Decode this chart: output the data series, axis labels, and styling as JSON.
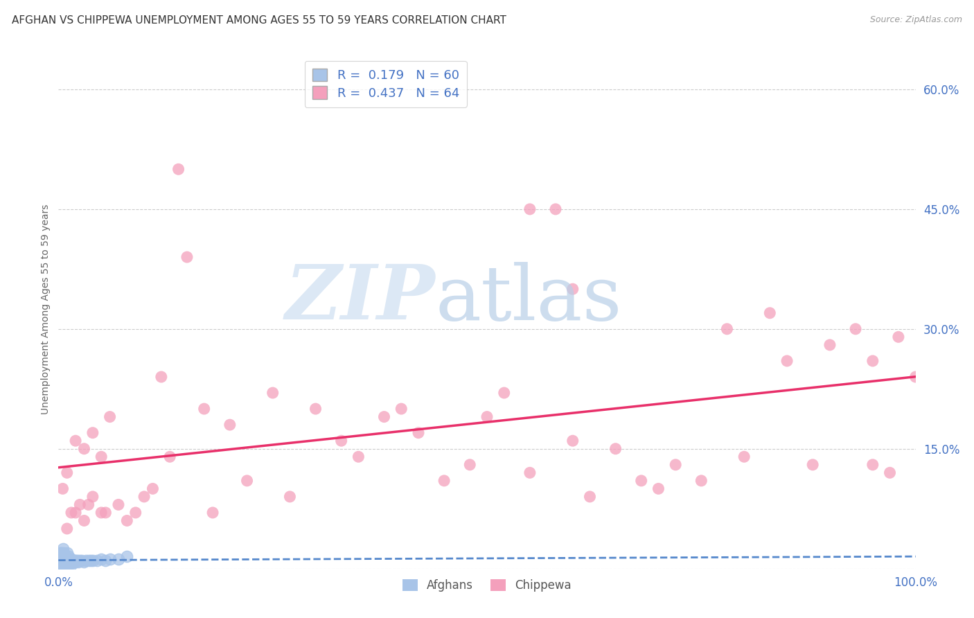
{
  "title": "AFGHAN VS CHIPPEWA UNEMPLOYMENT AMONG AGES 55 TO 59 YEARS CORRELATION CHART",
  "source": "Source: ZipAtlas.com",
  "ylabel": "Unemployment Among Ages 55 to 59 years",
  "xlim": [
    0,
    1.0
  ],
  "ylim": [
    0,
    0.65
  ],
  "yticks_right": [
    0.0,
    0.15,
    0.3,
    0.45,
    0.6
  ],
  "ytick_labels_right": [
    "",
    "15.0%",
    "30.0%",
    "45.0%",
    "60.0%"
  ],
  "afghans_R": 0.179,
  "afghans_N": 60,
  "chippewa_R": 0.437,
  "chippewa_N": 64,
  "afghans_color": "#a8c4e8",
  "chippewa_color": "#f4a0bc",
  "afghans_line_color": "#5588cc",
  "chippewa_line_color": "#e8306a",
  "legend_label_afghans": "Afghans",
  "legend_label_chippewa": "Chippewa",
  "background_color": "#ffffff",
  "afghans_x": [
    0.001,
    0.001,
    0.001,
    0.002,
    0.002,
    0.002,
    0.003,
    0.003,
    0.003,
    0.004,
    0.004,
    0.004,
    0.004,
    0.005,
    0.005,
    0.005,
    0.005,
    0.006,
    0.006,
    0.006,
    0.007,
    0.007,
    0.007,
    0.008,
    0.008,
    0.009,
    0.009,
    0.01,
    0.01,
    0.01,
    0.011,
    0.011,
    0.012,
    0.012,
    0.013,
    0.013,
    0.014,
    0.015,
    0.015,
    0.016,
    0.017,
    0.018,
    0.019,
    0.02,
    0.021,
    0.022,
    0.023,
    0.025,
    0.027,
    0.03,
    0.032,
    0.035,
    0.038,
    0.04,
    0.045,
    0.05,
    0.055,
    0.06,
    0.07,
    0.08
  ],
  "afghans_y": [
    0.005,
    0.01,
    0.015,
    0.005,
    0.01,
    0.02,
    0.005,
    0.01,
    0.02,
    0.005,
    0.008,
    0.012,
    0.02,
    0.005,
    0.01,
    0.015,
    0.025,
    0.005,
    0.01,
    0.02,
    0.005,
    0.01,
    0.015,
    0.008,
    0.015,
    0.005,
    0.012,
    0.005,
    0.01,
    0.02,
    0.005,
    0.01,
    0.008,
    0.015,
    0.005,
    0.012,
    0.008,
    0.005,
    0.012,
    0.008,
    0.01,
    0.008,
    0.01,
    0.008,
    0.01,
    0.01,
    0.008,
    0.01,
    0.01,
    0.008,
    0.01,
    0.01,
    0.01,
    0.01,
    0.01,
    0.012,
    0.01,
    0.012,
    0.012,
    0.015
  ],
  "chippewa_x": [
    0.005,
    0.01,
    0.01,
    0.015,
    0.02,
    0.02,
    0.025,
    0.03,
    0.03,
    0.035,
    0.04,
    0.04,
    0.05,
    0.05,
    0.055,
    0.06,
    0.07,
    0.08,
    0.09,
    0.1,
    0.11,
    0.12,
    0.13,
    0.14,
    0.15,
    0.17,
    0.18,
    0.2,
    0.22,
    0.25,
    0.27,
    0.3,
    0.33,
    0.35,
    0.38,
    0.4,
    0.42,
    0.45,
    0.48,
    0.5,
    0.52,
    0.55,
    0.55,
    0.58,
    0.6,
    0.62,
    0.65,
    0.68,
    0.7,
    0.72,
    0.75,
    0.78,
    0.8,
    0.83,
    0.85,
    0.88,
    0.9,
    0.93,
    0.95,
    0.97,
    1.0,
    0.98,
    0.95,
    0.6
  ],
  "chippewa_y": [
    0.1,
    0.05,
    0.12,
    0.07,
    0.16,
    0.07,
    0.08,
    0.06,
    0.15,
    0.08,
    0.09,
    0.17,
    0.07,
    0.14,
    0.07,
    0.19,
    0.08,
    0.06,
    0.07,
    0.09,
    0.1,
    0.24,
    0.14,
    0.5,
    0.39,
    0.2,
    0.07,
    0.18,
    0.11,
    0.22,
    0.09,
    0.2,
    0.16,
    0.14,
    0.19,
    0.2,
    0.17,
    0.11,
    0.13,
    0.19,
    0.22,
    0.12,
    0.45,
    0.45,
    0.16,
    0.09,
    0.15,
    0.11,
    0.1,
    0.13,
    0.11,
    0.3,
    0.14,
    0.32,
    0.26,
    0.13,
    0.28,
    0.3,
    0.26,
    0.12,
    0.24,
    0.29,
    0.13,
    0.35
  ]
}
